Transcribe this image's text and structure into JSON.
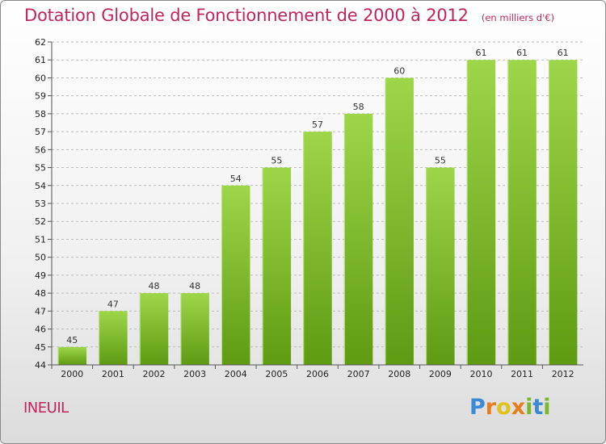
{
  "chart_data": {
    "type": "bar",
    "title": "Dotation Globale de Fonctionnement de 2000 à 2012",
    "subtitle": "(en milliers d'€)",
    "xlabel": "",
    "ylabel": "",
    "categories": [
      "2000",
      "2001",
      "2002",
      "2003",
      "2004",
      "2005",
      "2006",
      "2007",
      "2008",
      "2009",
      "2010",
      "2011",
      "2012"
    ],
    "values": [
      45,
      47,
      48,
      48,
      54,
      55,
      57,
      58,
      60,
      55,
      61,
      61,
      61
    ],
    "ylim": [
      44,
      62
    ],
    "yticks": [
      44,
      45,
      46,
      47,
      48,
      49,
      50,
      51,
      52,
      53,
      54,
      55,
      56,
      57,
      58,
      59,
      60,
      61,
      62
    ],
    "grid": true,
    "bar_color": "#7cc020"
  },
  "footer": {
    "commune": "INEUIL",
    "logo": "Proxiti"
  }
}
